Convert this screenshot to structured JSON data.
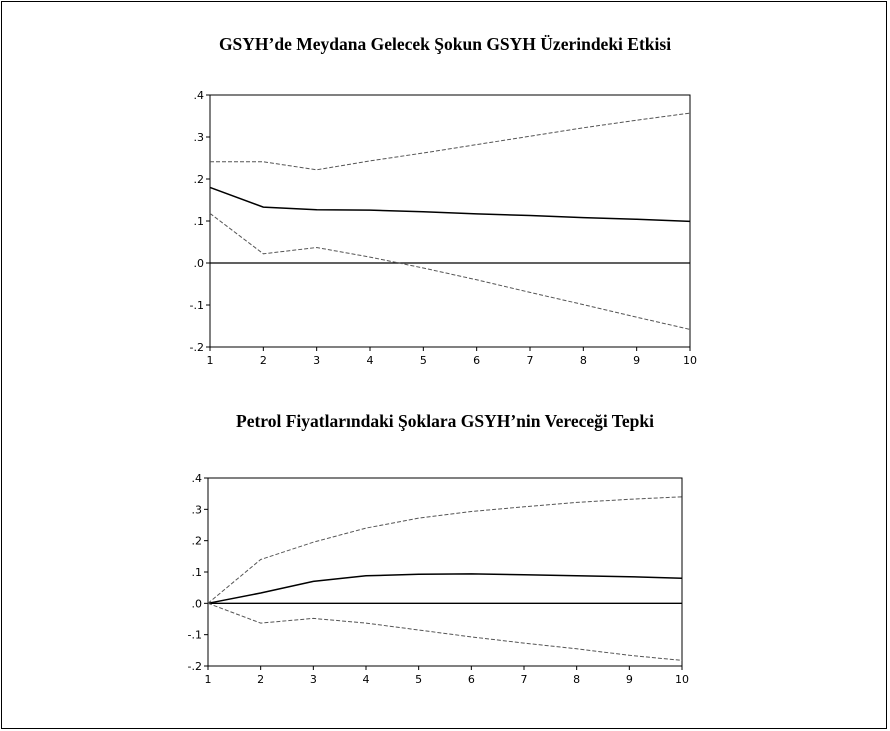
{
  "titles": [
    "GSYH’de Meydana Gelecek Şokun GSYH Üzerindeki Etkisi",
    "Petrol Fiyatlarındaki Şoklara GSYH’nin Vereceği Tepki"
  ],
  "chart_data": [
    {
      "type": "line",
      "title": "GSYH’de Meydana Gelecek Şokun GSYH Üzerindeki Etkisi",
      "x": [
        1,
        2,
        3,
        4,
        5,
        6,
        7,
        8,
        9,
        10
      ],
      "xticks": [
        "1",
        "2",
        "3",
        "4",
        "5",
        "6",
        "7",
        "8",
        "9",
        "10"
      ],
      "yticks": [
        ".4",
        ".3",
        ".2",
        ".1",
        ".0",
        "-.1",
        "-.2"
      ],
      "ylim": [
        -0.2,
        0.4
      ],
      "xlim": [
        1,
        10
      ],
      "zero_line": true,
      "series": [
        {
          "style": "solid",
          "values": [
            0.18,
            0.133,
            0.127,
            0.126,
            0.122,
            0.117,
            0.113,
            0.108,
            0.104,
            0.099
          ]
        },
        {
          "style": "dashed",
          "values": [
            0.241,
            0.241,
            0.222,
            0.243,
            0.262,
            0.282,
            0.302,
            0.322,
            0.34,
            0.357
          ]
        },
        {
          "style": "dashed",
          "values": [
            0.118,
            0.022,
            0.037,
            0.014,
            -0.012,
            -0.04,
            -0.07,
            -0.099,
            -0.129,
            -0.158
          ]
        }
      ]
    },
    {
      "type": "line",
      "title": "Petrol Fiyatlarındaki Şoklara GSYH’nin Vereceği Tepki",
      "x": [
        1,
        2,
        3,
        4,
        5,
        6,
        7,
        8,
        9,
        10
      ],
      "xticks": [
        "1",
        "2",
        "3",
        "4",
        "5",
        "6",
        "7",
        "8",
        "9",
        "10"
      ],
      "yticks": [
        ".4",
        ".3",
        ".2",
        ".1",
        ".0",
        "-.1",
        "-.2"
      ],
      "ylim": [
        -0.2,
        0.4
      ],
      "xlim": [
        1,
        10
      ],
      "zero_line": true,
      "series": [
        {
          "style": "solid",
          "values": [
            0.0,
            0.033,
            0.07,
            0.088,
            0.093,
            0.094,
            0.091,
            0.088,
            0.085,
            0.08
          ]
        },
        {
          "style": "dashed",
          "values": [
            0.0,
            0.14,
            0.195,
            0.24,
            0.272,
            0.293,
            0.308,
            0.322,
            0.332,
            0.34
          ]
        },
        {
          "style": "dashed",
          "values": [
            0.0,
            -0.063,
            -0.048,
            -0.063,
            -0.085,
            -0.107,
            -0.127,
            -0.145,
            -0.166,
            -0.182
          ]
        }
      ]
    }
  ]
}
